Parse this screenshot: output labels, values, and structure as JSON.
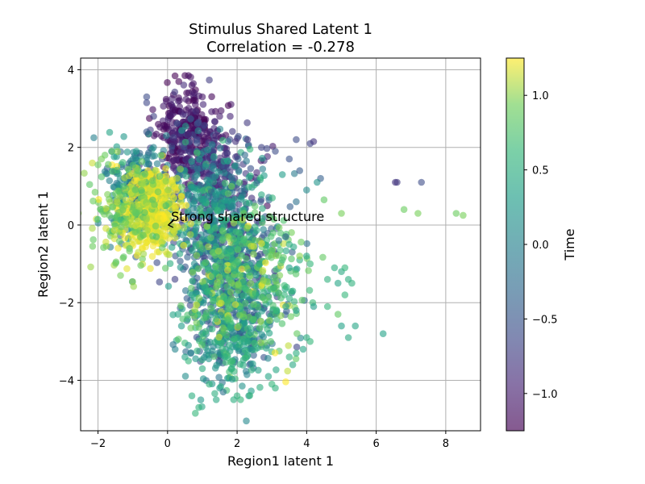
{
  "chart_data": {
    "type": "scatter",
    "title_line1": "Stimulus Shared Latent 1",
    "title_line2": "Correlation = -0.278",
    "xlabel": "Region1 latent 1",
    "ylabel": "Region2 latent 1",
    "xlim": [
      -2.5,
      9.0
    ],
    "ylim": [
      -5.3,
      4.3
    ],
    "x_ticks": [
      -2,
      0,
      2,
      4,
      6,
      8
    ],
    "x_tick_labels": [
      "−2",
      "0",
      "2",
      "4",
      "6",
      "8"
    ],
    "y_ticks": [
      -4,
      -2,
      0,
      2,
      4
    ],
    "y_tick_labels": [
      "−4",
      "−2",
      "0",
      "2",
      "4"
    ],
    "grid": true,
    "marker_alpha": 0.6,
    "colormap": "viridis",
    "colorbar": {
      "label": "Time",
      "range": [
        -1.25,
        1.25
      ],
      "ticks": [
        -1.0,
        -0.5,
        0.0,
        0.5,
        1.0
      ],
      "tick_labels": [
        "−1.0",
        "−0.5",
        "0.0",
        "0.5",
        "1.0"
      ]
    },
    "annotation": {
      "text": "Strong shared structure",
      "xy": [
        0.0,
        0.0
      ],
      "text_pos": [
        0.1,
        0.1
      ]
    },
    "series": [
      {
        "clusters": [
          {
            "cx": 0.5,
            "cy": 2.4,
            "sx": 0.45,
            "sy": 0.55,
            "n": 260,
            "t": -1.1,
            "ts": 0.15
          },
          {
            "cx": 1.2,
            "cy": 1.5,
            "sx": 0.7,
            "sy": 0.5,
            "n": 240,
            "t": -0.8,
            "ts": 0.2
          },
          {
            "cx": 1.6,
            "cy": -0.4,
            "sx": 0.75,
            "sy": 0.9,
            "n": 320,
            "t": -0.45,
            "ts": 0.25
          },
          {
            "cx": 2.0,
            "cy": -2.1,
            "sx": 0.65,
            "sy": 0.85,
            "n": 260,
            "t": -0.3,
            "ts": 0.25
          },
          {
            "cx": -0.9,
            "cy": 0.9,
            "sx": 0.45,
            "sy": 0.6,
            "n": 240,
            "t": 0.05,
            "ts": 0.25
          },
          {
            "cx": 1.3,
            "cy": 0.3,
            "sx": 0.85,
            "sy": 0.9,
            "n": 300,
            "t": 0.25,
            "ts": 0.25
          },
          {
            "cx": 1.9,
            "cy": -2.8,
            "sx": 0.7,
            "sy": 0.8,
            "n": 240,
            "t": 0.45,
            "ts": 0.25
          },
          {
            "cx": 2.2,
            "cy": -1.3,
            "sx": 0.8,
            "sy": 0.9,
            "n": 320,
            "t": 0.8,
            "ts": 0.2
          },
          {
            "cx": -0.4,
            "cy": 0.4,
            "sx": 0.4,
            "sy": 0.55,
            "n": 360,
            "t": 1.2,
            "ts": 0.04
          },
          {
            "cx": -1.1,
            "cy": 0.3,
            "sx": 0.5,
            "sy": 0.7,
            "n": 200,
            "t": 0.95,
            "ts": 0.15
          }
        ],
        "outliers": [
          {
            "x": 0.5,
            "y": 3.85,
            "t": -1.2
          },
          {
            "x": 0.6,
            "y": 3.85,
            "t": -1.15
          },
          {
            "x": 0.7,
            "y": 3.6,
            "t": -1.1
          },
          {
            "x": 0.55,
            "y": 3.4,
            "t": -1.2
          },
          {
            "x": 1.0,
            "y": 3.3,
            "t": -1.05
          },
          {
            "x": 0.8,
            "y": 3.1,
            "t": -1.1
          },
          {
            "x": -0.6,
            "y": 3.3,
            "t": -0.6
          },
          {
            "x": -0.6,
            "y": 3.15,
            "t": -0.65
          },
          {
            "x": -0.4,
            "y": 2.8,
            "t": -0.7
          },
          {
            "x": -0.6,
            "y": 2.4,
            "t": -0.5
          },
          {
            "x": -0.8,
            "y": 1.85,
            "t": -0.3
          },
          {
            "x": -0.9,
            "y": 1.9,
            "t": 0.3
          },
          {
            "x": -1.8,
            "y": 1.8,
            "t": 0.9
          },
          {
            "x": -1.9,
            "y": 1.7,
            "t": 0.95
          },
          {
            "x": -2.0,
            "y": 1.55,
            "t": 0.9
          },
          {
            "x": -1.6,
            "y": 1.9,
            "t": 0.85
          },
          {
            "x": 1.5,
            "y": 2.8,
            "t": -1.0
          },
          {
            "x": 1.8,
            "y": 2.8,
            "t": -0.95
          },
          {
            "x": 2.3,
            "y": 2.2,
            "t": -0.8
          },
          {
            "x": 2.7,
            "y": 2.0,
            "t": -0.7
          },
          {
            "x": 3.1,
            "y": 1.9,
            "t": -0.6
          },
          {
            "x": 3.5,
            "y": 1.7,
            "t": -0.55
          },
          {
            "x": 3.7,
            "y": 2.2,
            "t": -0.6
          },
          {
            "x": 4.1,
            "y": 2.1,
            "t": -0.7
          },
          {
            "x": 4.2,
            "y": 2.15,
            "t": -0.8
          },
          {
            "x": 3.8,
            "y": 1.4,
            "t": -0.45
          },
          {
            "x": 4.4,
            "y": 1.2,
            "t": -0.4
          },
          {
            "x": 4.3,
            "y": 1.1,
            "t": 0.2
          },
          {
            "x": 4.0,
            "y": 0.9,
            "t": 0.1
          },
          {
            "x": 3.7,
            "y": 0.6,
            "t": -0.2
          },
          {
            "x": 4.5,
            "y": 0.65,
            "t": 0.85
          },
          {
            "x": 3.3,
            "y": 1.3,
            "t": 0.3
          },
          {
            "x": 6.6,
            "y": 1.1,
            "t": -0.75
          },
          {
            "x": 6.55,
            "y": 1.1,
            "t": -0.8
          },
          {
            "x": 7.3,
            "y": 1.1,
            "t": -0.6
          },
          {
            "x": 6.8,
            "y": 0.4,
            "t": 0.9
          },
          {
            "x": 7.2,
            "y": 0.3,
            "t": 0.95
          },
          {
            "x": 8.3,
            "y": 0.3,
            "t": 0.9
          },
          {
            "x": 8.5,
            "y": 0.25,
            "t": 0.95
          },
          {
            "x": 5.0,
            "y": 0.3,
            "t": 0.95
          },
          {
            "x": 4.8,
            "y": -1.1,
            "t": 0.5
          },
          {
            "x": 5.0,
            "y": -1.2,
            "t": 0.45
          },
          {
            "x": 5.1,
            "y": -1.1,
            "t": 0.6
          },
          {
            "x": 5.2,
            "y": -1.4,
            "t": 0.5
          },
          {
            "x": 5.3,
            "y": -1.5,
            "t": 0.55
          },
          {
            "x": 5.1,
            "y": -1.8,
            "t": 0.6
          },
          {
            "x": 4.9,
            "y": -1.5,
            "t": 0.4
          },
          {
            "x": 4.6,
            "y": -1.4,
            "t": 0.55
          },
          {
            "x": 5.0,
            "y": -2.6,
            "t": 0.35
          },
          {
            "x": 5.4,
            "y": -2.6,
            "t": 0.4
          },
          {
            "x": 5.2,
            "y": -2.9,
            "t": 0.45
          },
          {
            "x": 6.2,
            "y": -2.8,
            "t": 0.35
          },
          {
            "x": 4.9,
            "y": -2.3,
            "t": 0.85
          },
          {
            "x": 4.6,
            "y": -2.1,
            "t": 0.6
          },
          {
            "x": 4.2,
            "y": -2.1,
            "t": 0.3
          },
          {
            "x": 4.0,
            "y": -2.9,
            "t": 0.5
          },
          {
            "x": 4.1,
            "y": -3.0,
            "t": 0.6
          },
          {
            "x": 3.9,
            "y": -3.2,
            "t": 0.4
          },
          {
            "x": 3.7,
            "y": -3.3,
            "t": 0.5
          },
          {
            "x": 3.5,
            "y": -3.4,
            "t": 0.55
          },
          {
            "x": 3.6,
            "y": -3.6,
            "t": 0.45
          },
          {
            "x": 3.0,
            "y": -4.1,
            "t": 0.6
          },
          {
            "x": 3.1,
            "y": -4.2,
            "t": 0.55
          },
          {
            "x": 2.9,
            "y": -3.9,
            "t": 0.4
          },
          {
            "x": 2.0,
            "y": -4.4,
            "t": 0.55
          },
          {
            "x": 2.1,
            "y": -4.5,
            "t": 0.6
          },
          {
            "x": 1.9,
            "y": -4.5,
            "t": 0.5
          },
          {
            "x": 1.4,
            "y": -4.5,
            "t": 0.45
          },
          {
            "x": 0.8,
            "y": -4.85,
            "t": 0.6
          },
          {
            "x": 0.9,
            "y": -4.7,
            "t": 0.55
          },
          {
            "x": 0.7,
            "y": -4.4,
            "t": 0.5
          },
          {
            "x": 1.2,
            "y": -4.1,
            "t": 0.55
          },
          {
            "x": 1.5,
            "y": -4.2,
            "t": 0.3
          },
          {
            "x": 1.6,
            "y": -4.3,
            "t": -0.2
          },
          {
            "x": 0.6,
            "y": -3.5,
            "t": 0.6
          },
          {
            "x": 0.5,
            "y": -3.4,
            "t": 0.4
          },
          {
            "x": 0.6,
            "y": -3.1,
            "t": 0.2
          },
          {
            "x": 1.0,
            "y": -3.7,
            "t": 0.5
          },
          {
            "x": 0.4,
            "y": -2.6,
            "t": 0.3
          },
          {
            "x": 0.3,
            "y": -2.3,
            "t": 0.4
          },
          {
            "x": 4.0,
            "y": -0.8,
            "t": 0.4
          },
          {
            "x": 4.1,
            "y": -1.0,
            "t": 0.6
          },
          {
            "x": 3.8,
            "y": -0.9,
            "t": 0.5
          },
          {
            "x": 3.6,
            "y": -1.7,
            "t": 0.5
          },
          {
            "x": 3.4,
            "y": -2.1,
            "t": 0.4
          },
          {
            "x": 3.7,
            "y": -2.2,
            "t": 0.3
          },
          {
            "x": 3.3,
            "y": -0.9,
            "t": 0.7
          },
          {
            "x": 3.5,
            "y": -1.1,
            "t": 0.3
          },
          {
            "x": 3.8,
            "y": -0.8,
            "t": 1.0
          },
          {
            "x": 3.4,
            "y": -0.3,
            "t": -0.4
          },
          {
            "x": 3.2,
            "y": -0.4,
            "t": -0.2
          },
          {
            "x": 3.5,
            "y": -0.5,
            "t": 0.5
          }
        ]
      }
    ]
  }
}
